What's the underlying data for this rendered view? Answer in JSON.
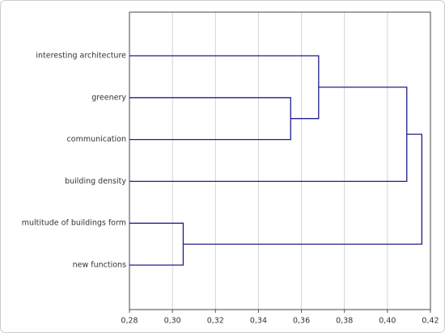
{
  "chart_data": {
    "type": "dendrogram",
    "orientation": "horizontal",
    "categories": [
      "interesting architecture",
      "greenery",
      "communication",
      "building density",
      "multitude of buildings form",
      "new functions"
    ],
    "merges": [
      {
        "children": [
          1,
          2
        ],
        "height": 0.355
      },
      {
        "children": [
          0,
          6
        ],
        "height": 0.368
      },
      {
        "children": [
          4,
          5
        ],
        "height": 0.305
      },
      {
        "children": [
          7,
          3
        ],
        "height": 0.409
      },
      {
        "children": [
          9,
          8
        ],
        "height": 0.416
      }
    ],
    "color": "#1f1f8c",
    "xlim": [
      0.28,
      0.42
    ],
    "xticks": [
      {
        "value": 0.28,
        "label": "0,28"
      },
      {
        "value": 0.3,
        "label": "0,30"
      },
      {
        "value": 0.32,
        "label": "0,32"
      },
      {
        "value": 0.34,
        "label": "0,34"
      },
      {
        "value": 0.36,
        "label": "0,36"
      },
      {
        "value": 0.38,
        "label": "0,38"
      },
      {
        "value": 0.4,
        "label": "0,40"
      },
      {
        "value": 0.42,
        "label": "0,42"
      }
    ],
    "grid": true
  }
}
